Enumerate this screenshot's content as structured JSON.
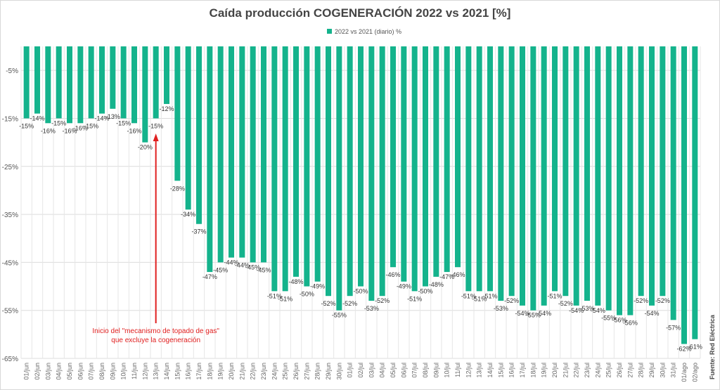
{
  "chart_data": {
    "type": "bar",
    "title": "Caída producción COGENERACIÓN 2022 vs 2021 [%]",
    "series": [
      {
        "name": "2022 vs 2021 (diario) %",
        "color": "#14b38c"
      }
    ],
    "categories": [
      "01/jun",
      "02/jun",
      "03/jun",
      "04/jun",
      "05/jun",
      "06/jun",
      "07/jun",
      "08/jun",
      "09/jun",
      "10/jun",
      "11/jun",
      "12/jun",
      "13/jun",
      "14/jun",
      "15/jun",
      "16/jun",
      "17/jun",
      "18/jun",
      "19/jun",
      "20/jun",
      "21/jun",
      "22/jun",
      "23/jun",
      "24/jun",
      "25/jun",
      "26/jun",
      "27/jun",
      "28/jun",
      "29/jun",
      "30/jun",
      "01/jul",
      "02/jul",
      "03/jul",
      "04/jul",
      "05/jul",
      "06/jul",
      "07/jul",
      "08/jul",
      "09/jul",
      "10/jul",
      "11/jul",
      "12/jul",
      "13/jul",
      "14/jul",
      "15/jul",
      "16/jul",
      "17/jul",
      "18/jul",
      "19/jul",
      "20/jul",
      "21/jul",
      "22/jul",
      "23/jul",
      "24/jul",
      "25/jul",
      "26/jul",
      "27/jul",
      "28/jul",
      "29/jul",
      "30/jul",
      "31/jul",
      "01/ago",
      "02/ago"
    ],
    "values": [
      -15,
      -14,
      -16,
      -15,
      -16,
      -16,
      -15,
      -14,
      -13,
      -15,
      -16,
      -20,
      -15,
      -12,
      -28,
      -34,
      -37,
      -47,
      -45,
      -44,
      -44,
      -45,
      -45,
      -51,
      -51,
      -48,
      -50,
      -49,
      -52,
      -55,
      -52,
      -50,
      -53,
      -52,
      -46,
      -49,
      -51,
      -50,
      -48,
      -47,
      -46,
      -51,
      -51,
      -51,
      -53,
      -52,
      -54,
      -55,
      -54,
      -51,
      -52,
      -54,
      -53,
      -54,
      -55,
      -56,
      -56,
      -52,
      -54,
      -52,
      -57,
      -62,
      -61
    ],
    "yticks": [
      "-5%",
      "-15%",
      "-25%",
      "-35%",
      "-45%",
      "-55%",
      "-65%"
    ],
    "ytick_values": [
      -5,
      -15,
      -25,
      -35,
      -45,
      -55,
      -65
    ],
    "ylim": [
      -65,
      0
    ],
    "grid": true,
    "legend_position": "top",
    "annotation": {
      "lines": [
        "Inicio del \"mecanismo de topado de gas\"",
        "que excluye la cogeneración"
      ],
      "category": "13/jun",
      "color": "#e02020"
    },
    "source": "Fuente: Red Eléctrica"
  }
}
